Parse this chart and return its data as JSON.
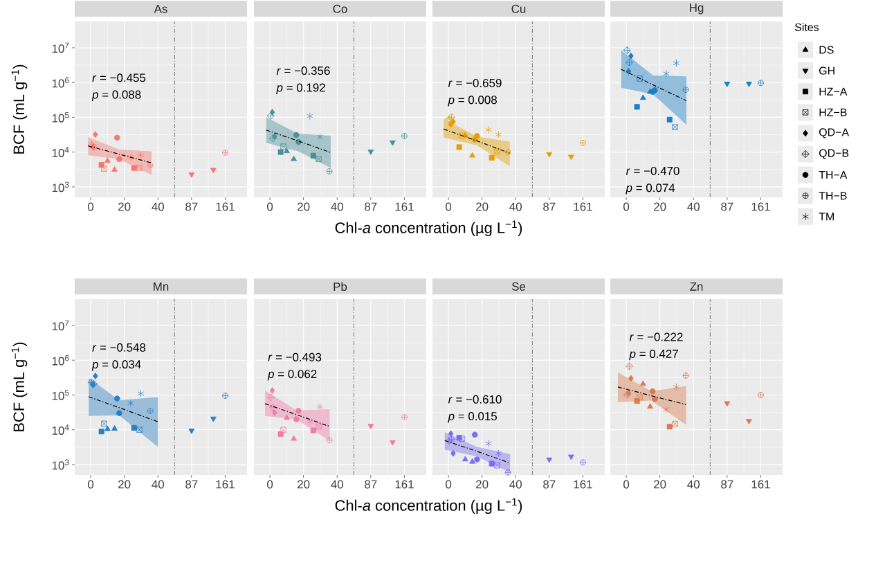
{
  "chart_data": [
    {
      "type": "scatter",
      "title": "As",
      "ylabel": "BCF (mL g$^{−1}$)",
      "color": "#F8766D",
      "annotations": [
        "*r* = −0.455",
        "*p* = 0.088"
      ],
      "xlim": [
        -9.5,
        50
      ],
      "xticks": [
        0,
        20,
        40
      ],
      "ylim": [
        500,
        57000000
      ],
      "yticks": [
        {
          "value": 1000,
          "label": "10$^{3}$"
        },
        {
          "value": 10000,
          "label": "10$^{4}$"
        },
        {
          "value": 100000,
          "label": "10$^{5}$"
        },
        {
          "value": 1000000,
          "label": "10$^{6}$"
        },
        {
          "value": 10000000,
          "label": "10$^{7}$"
        }
      ],
      "log": "y",
      "grid": true,
      "ref_lines": [
        {
          "axis": "x",
          "value": 50,
          "line_style": "dashdot"
        }
      ],
      "series": [
        {
          "type": "scatter",
          "x": [
            10,
            14.2
          ],
          "values": [
            5600,
            3100
          ]
        },
        {
          "type": "scatter"
        },
        {
          "type": "scatter",
          "x": [
            6.4,
            25.8
          ],
          "values": [
            4300,
            3500
          ]
        },
        {
          "type": "scatter",
          "x": [
            8,
            29
          ],
          "values": [
            3300,
            3500
          ]
        },
        {
          "type": "scatter",
          "x": [
            1.4,
            2.8
          ],
          "values": [
            14000,
            32000
          ]
        },
        {
          "type": "scatter",
          "x": [
            0.5,
            1.8
          ],
          "values": [
            16000,
            14000
          ]
        },
        {
          "type": "scatter",
          "x": [
            15.7,
            17
          ],
          "values": [
            26000,
            6300
          ]
        },
        {
          "type": "scatter",
          "x": [
            35.4
          ],
          "values": [
            4200
          ]
        },
        {
          "type": "scatter",
          "x": [
            23.8,
            29.8
          ],
          "values": [
            7100,
            8200
          ]
        },
        {
          "type": "line",
          "color": "#000000",
          "line_style": "dashdot",
          "x": [
            -1.5,
            17,
            36.2
          ],
          "values": [
            15000,
            8700,
            4900
          ],
          "lower": [
            8100,
            6200,
            2200
          ],
          "upper": [
            27000,
            11800,
            10600
          ]
        }
      ]
    },
    {
      "type": "scatter",
      "color": "#F8766D",
      "xlim": [
        50,
        209
      ],
      "xticks": [
        87,
        161
      ],
      "ylim": [
        500,
        57000000
      ],
      "yticks": [
        {
          "value": 1000,
          "label": null
        },
        {
          "value": 10000,
          "label": null
        },
        {
          "value": 100000,
          "label": null
        },
        {
          "value": 1000000,
          "label": null
        },
        {
          "value": 10000000,
          "label": null
        }
      ],
      "log": "y",
      "grid": true,
      "tick_labels": "x",
      "series": [
        {
          "type": "scatter"
        },
        {
          "type": "scatter",
          "x": [
            87,
            135
          ],
          "values": [
            2300,
            3100
          ]
        },
        {
          "type": "scatter"
        },
        {
          "type": "scatter"
        },
        {
          "type": "scatter"
        },
        {
          "type": "scatter"
        },
        {
          "type": "scatter"
        },
        {
          "type": "scatter",
          "x": [
            161
          ],
          "values": [
            9700
          ]
        },
        {
          "type": "scatter"
        }
      ]
    },
    {
      "type": "scatter",
      "title": "Co",
      "xlabel": "Chl-*a* concentration (µg L$^{−1}$)",
      "color": "#4A9099",
      "annotations": [
        "*r* = −0.356",
        "*p* = 0.192"
      ],
      "xlim": [
        -9.5,
        50
      ],
      "xticks": [
        0,
        20,
        40
      ],
      "ylim": [
        500,
        57000000
      ],
      "yticks": [
        {
          "value": 1000,
          "label": null
        },
        {
          "value": 10000,
          "label": null
        },
        {
          "value": 100000,
          "label": null
        },
        {
          "value": 1000000,
          "label": null
        },
        {
          "value": 10000000,
          "label": null
        }
      ],
      "log": "y",
      "grid": true,
      "tick_labels": "x",
      "ref_lines": [
        {
          "axis": "x",
          "value": 50,
          "line_style": "dashdot"
        }
      ],
      "series": [
        {
          "type": "scatter",
          "x": [
            10,
            14.2
          ],
          "values": [
            10600,
            6300
          ]
        },
        {
          "type": "scatter"
        },
        {
          "type": "scatter",
          "x": [
            6.4,
            25.8
          ],
          "values": [
            10000,
            7900
          ]
        },
        {
          "type": "scatter",
          "x": [
            8,
            29
          ],
          "values": [
            14500,
            6300
          ]
        },
        {
          "type": "scatter",
          "x": [
            1.4,
            2.8
          ],
          "values": [
            140000,
            28000
          ]
        },
        {
          "type": "scatter",
          "x": [
            0.5,
            1.8
          ],
          "values": [
            110000,
            25000
          ]
        },
        {
          "type": "scatter",
          "x": [
            15.7,
            17
          ],
          "values": [
            31000,
            19500
          ]
        },
        {
          "type": "scatter",
          "x": [
            35.4
          ],
          "values": [
            2800
          ]
        },
        {
          "type": "scatter",
          "x": [
            23.8,
            29.8
          ],
          "values": [
            108000,
            27500
          ]
        },
        {
          "type": "line",
          "color": "#000000",
          "line_style": "dashdot",
          "x": [
            -2.2,
            17,
            36.2
          ],
          "values": [
            43000,
            20800,
            9700
          ],
          "lower": [
            18400,
            10400,
            3500
          ],
          "upper": [
            100000,
            33700,
            29500
          ]
        }
      ]
    },
    {
      "type": "scatter",
      "color": "#4A9099",
      "xlim": [
        50,
        209
      ],
      "xticks": [
        87,
        161
      ],
      "ylim": [
        500,
        57000000
      ],
      "yticks": [
        {
          "value": 1000,
          "label": null
        },
        {
          "value": 10000,
          "label": null
        },
        {
          "value": 100000,
          "label": null
        },
        {
          "value": 1000000,
          "label": null
        },
        {
          "value": 10000000,
          "label": null
        }
      ],
      "log": "y",
      "grid": true,
      "tick_labels": "x",
      "series": [
        {
          "type": "scatter"
        },
        {
          "type": "scatter",
          "x": [
            87,
            135
          ],
          "values": [
            10400,
            19000
          ]
        },
        {
          "type": "scatter"
        },
        {
          "type": "scatter"
        },
        {
          "type": "scatter"
        },
        {
          "type": "scatter"
        },
        {
          "type": "scatter"
        },
        {
          "type": "scatter",
          "x": [
            161
          ],
          "values": [
            29000
          ]
        },
        {
          "type": "scatter"
        }
      ]
    },
    {
      "type": "scatter",
      "title": "Cu",
      "color": "#E69F00",
      "annotations": [
        "*r* = −0.659",
        "*p* = 0.008"
      ],
      "xlim": [
        -9.5,
        50
      ],
      "xticks": [
        0,
        20,
        40
      ],
      "ylim": [
        500,
        57000000
      ],
      "yticks": [
        {
          "value": 1000,
          "label": null
        },
        {
          "value": 10000,
          "label": null
        },
        {
          "value": 100000,
          "label": null
        },
        {
          "value": 1000000,
          "label": null
        },
        {
          "value": 10000000,
          "label": null
        }
      ],
      "log": "y",
      "grid": true,
      "tick_labels": "x",
      "ref_lines": [
        {
          "axis": "x",
          "value": 50,
          "line_style": "dashdot"
        }
      ],
      "series": [
        {
          "type": "scatter",
          "x": [
            10,
            14.2
          ],
          "values": [
            30000,
            7900
          ]
        },
        {
          "type": "scatter"
        },
        {
          "type": "scatter",
          "x": [
            6.4,
            25.8
          ],
          "values": [
            13900,
            6900
          ]
        },
        {
          "type": "scatter",
          "x": [
            8,
            29
          ],
          "values": [
            30000,
            10600
          ]
        },
        {
          "type": "scatter",
          "x": [
            1.4,
            2.8
          ],
          "values": [
            63000,
            75000
          ]
        },
        {
          "type": "scatter",
          "x": [
            0.5,
            1.8
          ],
          "values": [
            89000,
            100000
          ]
        },
        {
          "type": "scatter",
          "x": [
            15.7,
            17
          ],
          "values": [
            23000,
            29000
          ]
        },
        {
          "type": "scatter",
          "x": [
            35.4
          ],
          "values": [
            10000
          ]
        },
        {
          "type": "scatter",
          "x": [
            23.8,
            29.8
          ],
          "values": [
            44000,
            32000
          ]
        },
        {
          "type": "line",
          "color": "#000000",
          "line_style": "dashdot",
          "x": [
            -2.9,
            17,
            36.5
          ],
          "values": [
            46000,
            21000,
            9300
          ],
          "lower": [
            26500,
            15500,
            3900
          ],
          "upper": [
            91000,
            28000,
            20000
          ]
        }
      ]
    },
    {
      "type": "scatter",
      "color": "#E69F00",
      "xlim": [
        50,
        209
      ],
      "xticks": [
        87,
        161
      ],
      "ylim": [
        500,
        57000000
      ],
      "yticks": [
        {
          "value": 1000,
          "label": null
        },
        {
          "value": 10000,
          "label": null
        },
        {
          "value": 100000,
          "label": null
        },
        {
          "value": 1000000,
          "label": null
        },
        {
          "value": 10000000,
          "label": null
        }
      ],
      "log": "y",
      "grid": true,
      "tick_labels": "x",
      "series": [
        {
          "type": "scatter"
        },
        {
          "type": "scatter",
          "x": [
            87,
            135
          ],
          "values": [
            8800,
            7400
          ]
        },
        {
          "type": "scatter"
        },
        {
          "type": "scatter"
        },
        {
          "type": "scatter"
        },
        {
          "type": "scatter"
        },
        {
          "type": "scatter"
        },
        {
          "type": "scatter",
          "x": [
            161
          ],
          "values": [
            18400
          ]
        },
        {
          "type": "scatter"
        }
      ]
    },
    {
      "type": "scatter",
      "title": "Hg",
      "color": "#1A80C4",
      "annotations": [
        "*r* = −0.470",
        "*p* = 0.074"
      ],
      "xlim": [
        -9.5,
        50
      ],
      "xticks": [
        0,
        20,
        40
      ],
      "ylim": [
        500,
        57000000
      ],
      "yticks": [
        {
          "value": 1000,
          "label": null
        },
        {
          "value": 10000,
          "label": null
        },
        {
          "value": 100000,
          "label": null
        },
        {
          "value": 1000000,
          "label": null
        },
        {
          "value": 10000000,
          "label": null
        }
      ],
      "log": "y",
      "grid": true,
      "tick_labels": "x",
      "ref_lines": [
        {
          "axis": "x",
          "value": 50,
          "line_style": "dashdot"
        }
      ],
      "series": [
        {
          "type": "scatter",
          "x": [
            10,
            14.2
          ],
          "values": [
            360000,
            540000
          ]
        },
        {
          "type": "scatter"
        },
        {
          "type": "scatter",
          "x": [
            6.4,
            25.8
          ],
          "values": [
            200000,
            86000
          ]
        },
        {
          "type": "scatter",
          "x": [
            8,
            29
          ],
          "values": [
            1300000,
            52000
          ]
        },
        {
          "type": "scatter",
          "x": [
            1.4,
            2.8
          ],
          "values": [
            2100000,
            5800000
          ]
        },
        {
          "type": "scatter",
          "x": [
            0.5,
            1.8
          ],
          "values": [
            8500000,
            3800000
          ]
        },
        {
          "type": "scatter",
          "x": [
            15.7,
            17
          ],
          "values": [
            540000,
            600000
          ]
        },
        {
          "type": "scatter",
          "x": [
            35.4
          ],
          "values": [
            620000
          ]
        },
        {
          "type": "scatter",
          "x": [
            23.8,
            29.8
          ],
          "values": [
            1800000,
            3600000
          ]
        },
        {
          "type": "line",
          "color": "#000000",
          "line_style": "dashdot",
          "x": [
            -3,
            16,
            35.8
          ],
          "values": [
            2400000,
            855000,
            300000
          ],
          "lower": [
            710000,
            460000,
            61000
          ],
          "upper": [
            8500000,
            1600000,
            1500000
          ]
        }
      ]
    },
    {
      "type": "scatter",
      "color": "#1A80C4",
      "xlim": [
        50,
        209
      ],
      "xticks": [
        87,
        161
      ],
      "ylim": [
        500,
        57000000
      ],
      "yticks": [
        {
          "value": 1000,
          "label": null
        },
        {
          "value": 10000,
          "label": null
        },
        {
          "value": 100000,
          "label": null
        },
        {
          "value": 1000000,
          "label": null
        },
        {
          "value": 10000000,
          "label": null
        }
      ],
      "log": "y",
      "grid": true,
      "tick_labels": "x",
      "series": [
        {
          "type": "scatter"
        },
        {
          "type": "scatter",
          "x": [
            87,
            135
          ],
          "values": [
            930000,
            930000
          ]
        },
        {
          "type": "scatter"
        },
        {
          "type": "scatter"
        },
        {
          "type": "scatter"
        },
        {
          "type": "scatter"
        },
        {
          "type": "scatter"
        },
        {
          "type": "scatter",
          "x": [
            161
          ],
          "values": [
            970000
          ]
        },
        {
          "type": "scatter"
        }
      ]
    },
    {
      "type": "scatter",
      "title": "Mn",
      "ylabel": "BCF (mL g$^{−1}$)",
      "color": "#2B7FC3",
      "annotations": [
        "*r* = −0.548",
        "*p* = 0.034"
      ],
      "xlim": [
        -9.5,
        50
      ],
      "xticks": [
        0,
        20,
        40
      ],
      "ylim": [
        500,
        57000000
      ],
      "yticks": [
        {
          "value": 1000,
          "label": "10$^{3}$"
        },
        {
          "value": 10000,
          "label": "10$^{4}$"
        },
        {
          "value": 100000,
          "label": "10$^{5}$"
        },
        {
          "value": 1000000,
          "label": "10$^{6}$"
        },
        {
          "value": 10000000,
          "label": "10$^{7}$"
        }
      ],
      "log": "y",
      "grid": true,
      "ref_lines": [
        {
          "axis": "x",
          "value": 50,
          "line_style": "dashdot"
        }
      ],
      "series": [
        {
          "type": "scatter",
          "x": [
            10,
            14.2
          ],
          "values": [
            10500,
            10700
          ]
        },
        {
          "type": "scatter"
        },
        {
          "type": "scatter",
          "x": [
            6.4,
            25.8
          ],
          "values": [
            8900,
            11300
          ]
        },
        {
          "type": "scatter",
          "x": [
            8,
            29
          ],
          "values": [
            15000,
            10000
          ]
        },
        {
          "type": "scatter",
          "x": [
            1.4,
            2.8
          ],
          "values": [
            195000,
            350000
          ]
        },
        {
          "type": "scatter",
          "x": [
            0.5,
            1.8
          ],
          "values": [
            230000,
            210000
          ]
        },
        {
          "type": "scatter",
          "x": [
            15.7,
            17
          ],
          "values": [
            79000,
            30000
          ]
        },
        {
          "type": "scatter",
          "x": [
            35.4
          ],
          "values": [
            35000
          ]
        },
        {
          "type": "scatter",
          "x": [
            23.8,
            29.8
          ],
          "values": [
            58000,
            110000
          ]
        },
        {
          "type": "line",
          "color": "#000000",
          "line_style": "dashdot",
          "x": [
            -1.2,
            17,
            40
          ],
          "values": [
            89000,
            43000,
            17000
          ],
          "lower": [
            25000,
            26000,
            3200
          ],
          "upper": [
            310000,
            71000,
            87000
          ]
        }
      ]
    },
    {
      "type": "scatter",
      "color": "#2B7FC3",
      "xlim": [
        50,
        209
      ],
      "xticks": [
        87,
        161
      ],
      "ylim": [
        500,
        57000000
      ],
      "yticks": [
        {
          "value": 1000,
          "label": null
        },
        {
          "value": 10000,
          "label": null
        },
        {
          "value": 100000,
          "label": null
        },
        {
          "value": 1000000,
          "label": null
        },
        {
          "value": 10000000,
          "label": null
        }
      ],
      "log": "y",
      "grid": true,
      "tick_labels": "x",
      "series": [
        {
          "type": "scatter"
        },
        {
          "type": "scatter",
          "x": [
            87,
            135
          ],
          "values": [
            9500,
            21000
          ]
        },
        {
          "type": "scatter"
        },
        {
          "type": "scatter"
        },
        {
          "type": "scatter"
        },
        {
          "type": "scatter"
        },
        {
          "type": "scatter"
        },
        {
          "type": "scatter",
          "x": [
            161
          ],
          "values": [
            95000
          ]
        },
        {
          "type": "scatter"
        }
      ]
    },
    {
      "type": "scatter",
      "title": "Pb",
      "xlabel": "Chl-*a* concentration (µg L$^{−1}$)",
      "color": "#F17CA6",
      "annotations": [
        "*r* = −0.493",
        "*p* = 0.062"
      ],
      "xlim": [
        -9.5,
        50
      ],
      "xticks": [
        0,
        20,
        40
      ],
      "ylim": [
        500,
        57000000
      ],
      "yticks": [
        {
          "value": 1000,
          "label": null
        },
        {
          "value": 10000,
          "label": null
        },
        {
          "value": 100000,
          "label": null
        },
        {
          "value": 1000000,
          "label": null
        },
        {
          "value": 10000000,
          "label": null
        }
      ],
      "log": "y",
      "grid": true,
      "tick_labels": "x",
      "ref_lines": [
        {
          "axis": "x",
          "value": 50,
          "line_style": "dashdot"
        }
      ],
      "series": [
        {
          "type": "scatter",
          "x": [
            10,
            14.2
          ],
          "values": [
            22000,
            5500
          ]
        },
        {
          "type": "scatter"
        },
        {
          "type": "scatter",
          "x": [
            6.4,
            25.8
          ],
          "values": [
            7500,
            9500
          ]
        },
        {
          "type": "scatter",
          "x": [
            8,
            29
          ],
          "values": [
            9900,
            12400
          ]
        },
        {
          "type": "scatter",
          "x": [
            1.4,
            2.8
          ],
          "values": [
            134000,
            31000
          ]
        },
        {
          "type": "scatter",
          "x": [
            0.5,
            1.8
          ],
          "values": [
            85000,
            44000
          ]
        },
        {
          "type": "scatter",
          "x": [
            15.7,
            17
          ],
          "values": [
            20000,
            35000
          ]
        },
        {
          "type": "scatter",
          "x": [
            35.4
          ],
          "values": [
            5000
          ]
        },
        {
          "type": "scatter",
          "x": [
            23.8,
            29.8
          ],
          "values": [
            17000,
            46000
          ]
        },
        {
          "type": "line",
          "color": "#000000",
          "line_style": "dashdot",
          "x": [
            -2.9,
            16,
            35.6
          ],
          "values": [
            56000,
            27000,
            12400
          ],
          "lower": [
            25000,
            19500,
            4800
          ],
          "upper": [
            134000,
            36000,
            39000
          ]
        }
      ]
    },
    {
      "type": "scatter",
      "color": "#F17CA6",
      "xlim": [
        50,
        209
      ],
      "xticks": [
        87,
        161
      ],
      "ylim": [
        500,
        57000000
      ],
      "yticks": [
        {
          "value": 1000,
          "label": null
        },
        {
          "value": 10000,
          "label": null
        },
        {
          "value": 100000,
          "label": null
        },
        {
          "value": 1000000,
          "label": null
        },
        {
          "value": 10000000,
          "label": null
        }
      ],
      "log": "y",
      "grid": true,
      "tick_labels": "x",
      "series": [
        {
          "type": "scatter"
        },
        {
          "type": "scatter",
          "x": [
            87,
            135
          ],
          "values": [
            13000,
            4400
          ]
        },
        {
          "type": "scatter"
        },
        {
          "type": "scatter"
        },
        {
          "type": "scatter"
        },
        {
          "type": "scatter"
        },
        {
          "type": "scatter"
        },
        {
          "type": "scatter",
          "x": [
            161
          ],
          "values": [
            23000
          ]
        },
        {
          "type": "scatter"
        }
      ]
    },
    {
      "type": "scatter",
      "title": "Se",
      "color": "#7B6CF0",
      "annotations": [
        "*r* = −0.610",
        "*p* = 0.015"
      ],
      "xlim": [
        -9.5,
        50
      ],
      "xticks": [
        0,
        20,
        40
      ],
      "ylim": [
        500,
        57000000
      ],
      "yticks": [
        {
          "value": 1000,
          "label": null
        },
        {
          "value": 10000,
          "label": null
        },
        {
          "value": 100000,
          "label": null
        },
        {
          "value": 1000000,
          "label": null
        },
        {
          "value": 10000000,
          "label": null
        }
      ],
      "log": "y",
      "grid": true,
      "tick_labels": "x",
      "ref_lines": [
        {
          "axis": "x",
          "value": 50,
          "line_style": "dashdot"
        }
      ],
      "series": [
        {
          "type": "scatter",
          "x": [
            10,
            14.2
          ],
          "values": [
            1400,
            1200
          ]
        },
        {
          "type": "scatter"
        },
        {
          "type": "scatter",
          "x": [
            6.4,
            25.8
          ],
          "values": [
            5900,
            1060
          ]
        },
        {
          "type": "scatter",
          "x": [
            8,
            29
          ],
          "values": [
            5500,
            940
          ]
        },
        {
          "type": "scatter",
          "x": [
            1.4,
            2.8
          ],
          "values": [
            7700,
            2100
          ]
        },
        {
          "type": "scatter",
          "x": [
            0.5,
            1.8
          ],
          "values": [
            4800,
            5300
          ]
        },
        {
          "type": "scatter",
          "x": [
            15.7,
            17
          ],
          "values": [
            7200,
            1400
          ]
        },
        {
          "type": "scatter",
          "x": [
            35.4
          ],
          "values": [
            590
          ]
        },
        {
          "type": "scatter",
          "x": [
            23.8,
            29.8
          ],
          "values": [
            4000,
            2100
          ]
        },
        {
          "type": "line",
          "color": "#000000",
          "line_style": "dashdot",
          "x": [
            -2.2,
            17,
            36.7
          ],
          "values": [
            4900,
            2400,
            1100
          ],
          "lower": [
            2700,
            1700,
            590
          ],
          "upper": [
            8500,
            3200,
            2000
          ]
        }
      ]
    },
    {
      "type": "scatter",
      "color": "#7B6CF0",
      "xlim": [
        50,
        209
      ],
      "xticks": [
        87,
        161
      ],
      "ylim": [
        500,
        57000000
      ],
      "yticks": [
        {
          "value": 1000,
          "label": null
        },
        {
          "value": 10000,
          "label": null
        },
        {
          "value": 100000,
          "label": null
        },
        {
          "value": 1000000,
          "label": null
        },
        {
          "value": 10000000,
          "label": null
        }
      ],
      "log": "y",
      "grid": true,
      "tick_labels": "x",
      "series": [
        {
          "type": "scatter"
        },
        {
          "type": "scatter",
          "x": [
            87,
            135
          ],
          "values": [
            1400,
            1700
          ]
        },
        {
          "type": "scatter"
        },
        {
          "type": "scatter"
        },
        {
          "type": "scatter"
        },
        {
          "type": "scatter"
        },
        {
          "type": "scatter"
        },
        {
          "type": "scatter",
          "x": [
            161
          ],
          "values": [
            1150
          ]
        },
        {
          "type": "scatter"
        }
      ]
    },
    {
      "type": "scatter",
      "title": "Zn",
      "color": "#D97B50",
      "annotations": [
        "*r* = −0.222",
        "*p* = 0.427"
      ],
      "xlim": [
        -9.5,
        50
      ],
      "xticks": [
        0,
        20,
        40
      ],
      "ylim": [
        500,
        57000000
      ],
      "yticks": [
        {
          "value": 1000,
          "label": null
        },
        {
          "value": 10000,
          "label": null
        },
        {
          "value": 100000,
          "label": null
        },
        {
          "value": 1000000,
          "label": null
        },
        {
          "value": 10000000,
          "label": null
        }
      ],
      "log": "y",
      "grid": true,
      "tick_labels": "x",
      "ref_lines": [
        {
          "axis": "x",
          "value": 50,
          "line_style": "dashdot"
        }
      ],
      "series": [
        {
          "type": "scatter",
          "x": [
            10,
            14.2
          ],
          "values": [
            207000,
            46000
          ]
        },
        {
          "type": "scatter"
        },
        {
          "type": "scatter",
          "x": [
            6.4,
            25.8
          ],
          "values": [
            67000,
            12200
          ]
        },
        {
          "type": "scatter",
          "x": [
            8,
            29
          ],
          "values": [
            85000,
            14800
          ]
        },
        {
          "type": "scatter",
          "x": [
            1.4,
            2.8
          ],
          "values": [
            114000,
            300000
          ]
        },
        {
          "type": "scatter",
          "x": [
            0.5,
            1.8
          ],
          "values": [
            102000,
            670000
          ]
        },
        {
          "type": "scatter",
          "x": [
            15.7,
            17
          ],
          "values": [
            127000,
            76000
          ]
        },
        {
          "type": "scatter",
          "x": [
            35.4
          ],
          "values": [
            360000
          ]
        },
        {
          "type": "scatter",
          "x": [
            23.8,
            29.8
          ],
          "values": [
            39000,
            170000
          ]
        },
        {
          "type": "line",
          "color": "#000000",
          "line_style": "dashdot",
          "x": [
            -5,
            15,
            35.6
          ],
          "values": [
            170000,
            95000,
            53000
          ],
          "lower": [
            62000,
            69000,
            13800
          ],
          "upper": [
            440000,
            129000,
            180000
          ]
        }
      ]
    },
    {
      "type": "scatter",
      "color": "#D97B50",
      "xlim": [
        50,
        209
      ],
      "xticks": [
        87,
        161
      ],
      "ylim": [
        500,
        57000000
      ],
      "yticks": [
        {
          "value": 1000,
          "label": null
        },
        {
          "value": 10000,
          "label": null
        },
        {
          "value": 100000,
          "label": null
        },
        {
          "value": 1000000,
          "label": null
        },
        {
          "value": 10000000,
          "label": null
        }
      ],
      "log": "y",
      "grid": true,
      "tick_labels": "x",
      "series": [
        {
          "type": "scatter"
        },
        {
          "type": "scatter",
          "x": [
            87,
            135
          ],
          "values": [
            58000,
            18000
          ]
        },
        {
          "type": "scatter"
        },
        {
          "type": "scatter"
        },
        {
          "type": "scatter"
        },
        {
          "type": "scatter"
        },
        {
          "type": "scatter"
        },
        {
          "type": "scatter",
          "x": [
            161
          ],
          "values": [
            100000
          ]
        },
        {
          "type": "scatter"
        }
      ]
    },
    {
      "type": "other",
      "title": "Sites",
      "annotations": [
        "DS",
        "GH",
        "HZ−A",
        "HZ−B",
        "QD−A",
        "QD−B",
        "TH−A",
        "TH−B",
        "TM"
      ]
    }
  ]
}
